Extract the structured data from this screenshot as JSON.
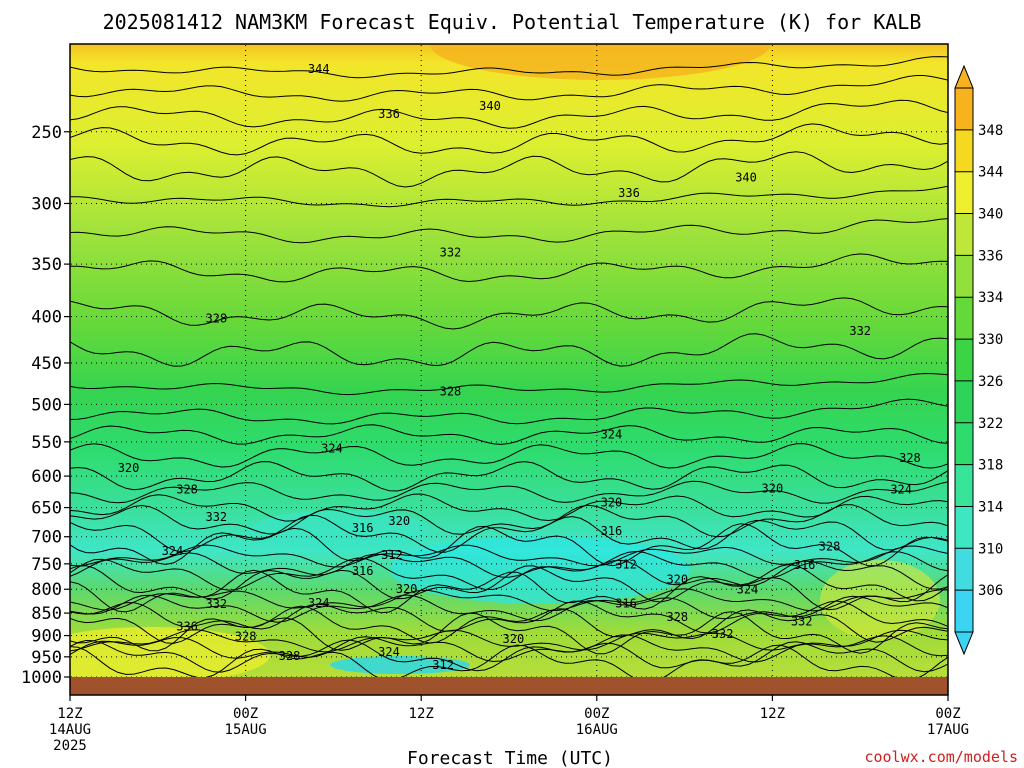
{
  "chart_data": {
    "type": "heatmap",
    "title": "2025081412 NAM3KM Forecast Equiv. Potential Temperature (K) for KALB",
    "xlabel": "Forecast Time (UTC)",
    "ylabel": "",
    "credit": "coolwx.com/models",
    "x_ticks": [
      {
        "hour": 0,
        "lines": [
          "12Z",
          "14AUG",
          "2025"
        ]
      },
      {
        "hour": 12,
        "lines": [
          "00Z",
          "15AUG"
        ]
      },
      {
        "hour": 24,
        "lines": [
          "12Z"
        ]
      },
      {
        "hour": 36,
        "lines": [
          "00Z",
          "16AUG"
        ]
      },
      {
        "hour": 48,
        "lines": [
          "12Z"
        ]
      },
      {
        "hour": 60,
        "lines": [
          "00Z",
          "17AUG"
        ]
      }
    ],
    "xlim_hours": [
      0,
      60
    ],
    "y_ticks": [
      250,
      300,
      350,
      400,
      450,
      500,
      550,
      600,
      650,
      700,
      750,
      800,
      850,
      900,
      950,
      1000
    ],
    "ylim_hpa": [
      200,
      1020
    ],
    "y_scale": "log",
    "y_inverted": true,
    "ground_hpa": 1000,
    "colorbar": {
      "levels": [
        306,
        310,
        314,
        318,
        322,
        326,
        330,
        334,
        336,
        340,
        344,
        348
      ],
      "labels": [
        "306",
        "310",
        "314",
        "318",
        "322",
        "326",
        "330",
        "334",
        "336",
        "340",
        "344",
        "348"
      ],
      "colors": [
        "#3bd4f2",
        "#42dce0",
        "#3fe6c2",
        "#38e39a",
        "#2edc6e",
        "#2ed35a",
        "#3ad445",
        "#66d93a",
        "#92e03c",
        "#bfe73a",
        "#eeef2e",
        "#f5d820",
        "#f7b21e"
      ]
    },
    "contour_labels": [
      {
        "text": "344",
        "hour": 17.0,
        "hpa": 213
      },
      {
        "text": "340",
        "hour": 28.7,
        "hpa": 234
      },
      {
        "text": "336",
        "hour": 21.8,
        "hpa": 239
      },
      {
        "text": "340",
        "hour": 46.2,
        "hpa": 281
      },
      {
        "text": "336",
        "hour": 38.2,
        "hpa": 292
      },
      {
        "text": "332",
        "hour": 26.0,
        "hpa": 340
      },
      {
        "text": "332",
        "hour": 54.0,
        "hpa": 415
      },
      {
        "text": "328",
        "hour": 10.0,
        "hpa": 402
      },
      {
        "text": "328",
        "hour": 26.0,
        "hpa": 484
      },
      {
        "text": "324",
        "hour": 37.0,
        "hpa": 540
      },
      {
        "text": "324",
        "hour": 17.9,
        "hpa": 559
      },
      {
        "text": "328",
        "hour": 57.4,
        "hpa": 573
      },
      {
        "text": "320",
        "hour": 4.0,
        "hpa": 588
      },
      {
        "text": "320",
        "hour": 48.0,
        "hpa": 619
      },
      {
        "text": "324",
        "hour": 56.8,
        "hpa": 621
      },
      {
        "text": "328",
        "hour": 8.0,
        "hpa": 621
      },
      {
        "text": "320",
        "hour": 37.0,
        "hpa": 642
      },
      {
        "text": "332",
        "hour": 10.0,
        "hpa": 666
      },
      {
        "text": "320",
        "hour": 22.5,
        "hpa": 673
      },
      {
        "text": "316",
        "hour": 20.0,
        "hpa": 685
      },
      {
        "text": "316",
        "hour": 37.0,
        "hpa": 690
      },
      {
        "text": "324",
        "hour": 7.0,
        "hpa": 726
      },
      {
        "text": "312",
        "hour": 22.0,
        "hpa": 733
      },
      {
        "text": "328",
        "hour": 51.9,
        "hpa": 718
      },
      {
        "text": "312",
        "hour": 38.0,
        "hpa": 751
      },
      {
        "text": "316",
        "hour": 50.2,
        "hpa": 752
      },
      {
        "text": "316",
        "hour": 20.0,
        "hpa": 764
      },
      {
        "text": "320",
        "hour": 41.5,
        "hpa": 780
      },
      {
        "text": "320",
        "hour": 23.0,
        "hpa": 800
      },
      {
        "text": "324",
        "hour": 46.3,
        "hpa": 801
      },
      {
        "text": "332",
        "hour": 10.0,
        "hpa": 831
      },
      {
        "text": "324",
        "hour": 17.0,
        "hpa": 829
      },
      {
        "text": "316",
        "hour": 38.0,
        "hpa": 830
      },
      {
        "text": "328",
        "hour": 41.5,
        "hpa": 859
      },
      {
        "text": "332",
        "hour": 50.0,
        "hpa": 868
      },
      {
        "text": "336",
        "hour": 8.0,
        "hpa": 880
      },
      {
        "text": "332",
        "hour": 44.6,
        "hpa": 897
      },
      {
        "text": "328",
        "hour": 12.0,
        "hpa": 902
      },
      {
        "text": "320",
        "hour": 30.3,
        "hpa": 908
      },
      {
        "text": "324",
        "hour": 21.8,
        "hpa": 939
      },
      {
        "text": "328",
        "hour": 15.0,
        "hpa": 948
      },
      {
        "text": "312",
        "hour": 25.5,
        "hpa": 970
      }
    ]
  }
}
